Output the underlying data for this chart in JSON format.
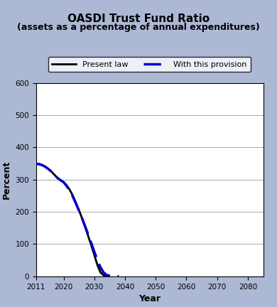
{
  "title_line1": "OASDI Trust Fund Ratio",
  "title_line2": "(assets as a percentage of annual expenditures)",
  "xlabel": "Year",
  "ylabel": "Percent",
  "xlim": [
    2011,
    2085
  ],
  "ylim": [
    0,
    600
  ],
  "yticks": [
    0,
    100,
    200,
    300,
    400,
    500,
    600
  ],
  "xticks": [
    2011,
    2020,
    2030,
    2040,
    2050,
    2060,
    2070,
    2080
  ],
  "background_color": "#adb8d4",
  "plot_bg_color": "#ffffff",
  "present_law_color": "#000000",
  "provision_color": "#0000cc",
  "present_law_x": [
    2011,
    2012,
    2013,
    2014,
    2015,
    2016,
    2017,
    2018,
    2019,
    2020,
    2021,
    2022,
    2023,
    2024,
    2025,
    2026,
    2027,
    2028,
    2029,
    2030,
    2031,
    2032,
    2033,
    2034,
    2034.5
  ],
  "present_law_y": [
    349,
    348,
    345,
    340,
    333,
    325,
    315,
    305,
    298,
    292,
    282,
    268,
    250,
    228,
    205,
    180,
    153,
    125,
    96,
    66,
    35,
    12,
    3,
    0.5,
    0
  ],
  "provision_x": [
    2011,
    2012,
    2013,
    2014,
    2015,
    2016,
    2017,
    2018,
    2019,
    2020,
    2021,
    2022,
    2023,
    2024,
    2025,
    2026,
    2027,
    2028,
    2029,
    2030,
    2031,
    2032,
    2033,
    2034,
    2035,
    2036,
    2037,
    2037.5,
    2038
  ],
  "provision_y": [
    349,
    348,
    345,
    340,
    333,
    325,
    315,
    305,
    298,
    292,
    280,
    265,
    247,
    226,
    203,
    180,
    155,
    130,
    103,
    76,
    50,
    28,
    12,
    4,
    1.5,
    0.8,
    0.3,
    0.1,
    0
  ],
  "legend_present_law": "Present law",
  "legend_provision": "With this provision"
}
